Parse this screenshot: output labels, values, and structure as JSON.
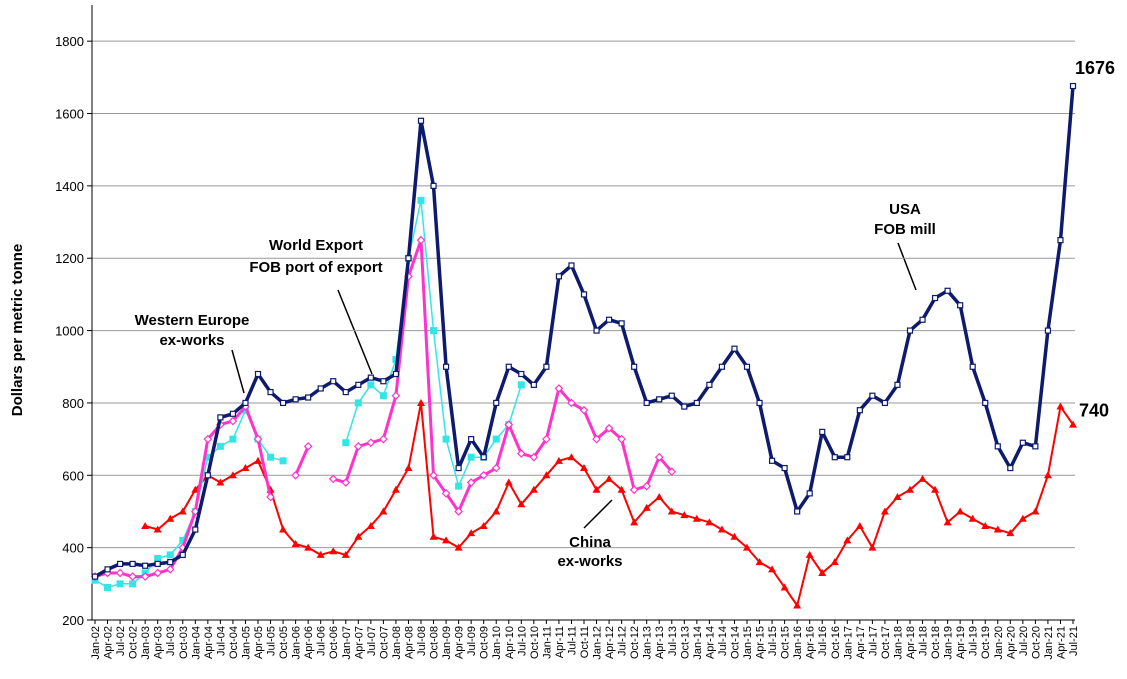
{
  "chart_data": {
    "type": "line",
    "y_label": "Dollars per metric tonne",
    "categories": [
      "Jan-02",
      "Apr-02",
      "Jul-02",
      "Oct-02",
      "Jan-03",
      "Apr-03",
      "Jul-03",
      "Oct-03",
      "Jan-04",
      "Apr-04",
      "Jul-04",
      "Oct-04",
      "Jan-05",
      "Apr-05",
      "Jul-05",
      "Oct-05",
      "Jan-06",
      "Apr-06",
      "Jul-06",
      "Oct-06",
      "Jan-07",
      "Apr-07",
      "Jul-07",
      "Oct-07",
      "Jan-08",
      "Apr-08",
      "Jul-08",
      "Oct-08",
      "Jan-09",
      "Apr-09",
      "Jul-09",
      "Oct-09",
      "Jan-10",
      "Apr-10",
      "Jul-10",
      "Oct-10",
      "Jan-11",
      "Apr-11",
      "Jul-11",
      "Oct-11",
      "Jan-12",
      "Apr-12",
      "Jul-12",
      "Oct-12",
      "Jan-13",
      "Apr-13",
      "Jul-13",
      "Oct-13",
      "Jan-14",
      "Apr-14",
      "Jul-14",
      "Oct-14",
      "Jan-15",
      "Apr-15",
      "Jul-15",
      "Oct-15",
      "Jan-16",
      "Apr-16",
      "Jul-16",
      "Oct-16",
      "Jan-17",
      "Apr-17",
      "Jul-17",
      "Oct-17",
      "Jan-18",
      "Apr-18",
      "Jul-18",
      "Oct-18",
      "Jan-19",
      "Apr-19",
      "Jul-19",
      "Oct-19",
      "Jan-20",
      "Apr-20",
      "Jul-20",
      "Oct-20",
      "Jan-21",
      "Apr-21",
      "Jul-21"
    ],
    "series": [
      {
        "color": "#0d1a6e",
        "marker": "square-open",
        "values": [
          320,
          340,
          355,
          355,
          350,
          355,
          360,
          380,
          450,
          600,
          760,
          770,
          800,
          880,
          830,
          800,
          810,
          815,
          840,
          860,
          830,
          850,
          870,
          860,
          880,
          1200,
          1580,
          1400,
          900,
          620,
          700,
          650,
          800,
          900,
          880,
          850,
          900,
          1150,
          1180,
          1100,
          1000,
          1030,
          1020,
          900,
          800,
          810,
          820,
          790,
          800,
          850,
          900,
          950,
          900,
          800,
          640,
          620,
          500,
          550,
          720,
          650,
          650,
          780,
          820,
          800,
          850,
          1000,
          1030,
          1090,
          1110,
          1070,
          900,
          800,
          680,
          620,
          690,
          680,
          1000,
          1250,
          1676
        ]
      },
      {
        "color": "#ff33cc",
        "marker": "diamond-open",
        "values": [
          320,
          330,
          330,
          320,
          320,
          330,
          340,
          400,
          500,
          700,
          740,
          750,
          790,
          700,
          540,
          null,
          600,
          680,
          null,
          590,
          580,
          680,
          690,
          700,
          820,
          1150,
          1250,
          600,
          550,
          500,
          580,
          600,
          620,
          740,
          660,
          650,
          700,
          840,
          800,
          780,
          700,
          730,
          700,
          560,
          570,
          650,
          610,
          null,
          null,
          null,
          null,
          null,
          null,
          null,
          null,
          null,
          null,
          null,
          null,
          null,
          null,
          null,
          null,
          null,
          null,
          null,
          null,
          null,
          null,
          null,
          null,
          null,
          null,
          null,
          null,
          null,
          null,
          null,
          null
        ]
      },
      {
        "color": "#33e6e6",
        "marker": "square-filled",
        "values": [
          310,
          290,
          300,
          300,
          330,
          370,
          380,
          420,
          500,
          650,
          680,
          700,
          780,
          700,
          650,
          640,
          null,
          null,
          null,
          null,
          690,
          800,
          850,
          820,
          920,
          1200,
          1360,
          1000,
          700,
          570,
          650,
          650,
          700,
          740,
          850,
          null,
          null,
          null,
          null,
          null,
          null,
          null,
          null,
          null,
          null,
          null,
          null,
          null,
          null,
          null,
          null,
          null,
          null,
          null,
          null,
          null,
          null,
          null,
          null,
          null,
          null,
          null,
          null,
          null,
          null,
          null,
          null,
          null,
          null,
          null,
          null,
          null,
          null,
          null,
          null,
          null,
          null,
          null,
          null
        ]
      },
      {
        "color": "#ff0000",
        "marker": "triangle",
        "values": [
          null,
          null,
          null,
          null,
          460,
          450,
          480,
          500,
          560,
          600,
          580,
          600,
          620,
          640,
          560,
          450,
          410,
          400,
          380,
          390,
          380,
          430,
          460,
          500,
          560,
          620,
          800,
          430,
          420,
          400,
          440,
          460,
          500,
          580,
          520,
          560,
          600,
          640,
          650,
          620,
          560,
          590,
          560,
          470,
          510,
          540,
          500,
          490,
          480,
          470,
          450,
          430,
          400,
          360,
          340,
          290,
          240,
          380,
          330,
          360,
          420,
          460,
          400,
          500,
          540,
          560,
          590,
          560,
          470,
          500,
          480,
          460,
          450,
          440,
          480,
          500,
          600,
          790,
          740
        ]
      }
    ],
    "annotations": [
      {
        "lines": [
          "Western Europe",
          "ex-works"
        ]
      },
      {
        "lines": [
          "World Export",
          "FOB port of export"
        ]
      },
      {
        "lines": [
          "USA",
          "FOB mill"
        ]
      },
      {
        "lines": [
          "China",
          "ex-works"
        ]
      }
    ],
    "ylim": [
      200,
      1900
    ],
    "yticks": [
      200,
      400,
      600,
      800,
      1000,
      1200,
      1400,
      1600,
      1800
    ],
    "grid": true
  }
}
